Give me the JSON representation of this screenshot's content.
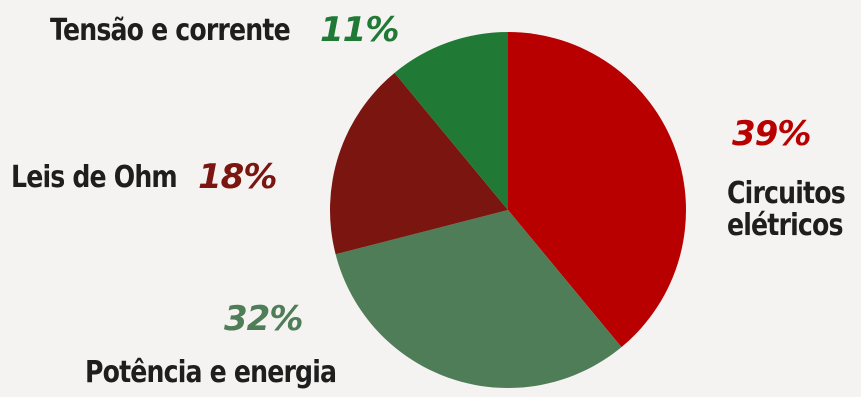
{
  "chart_data": {
    "type": "pie",
    "start_angle_deg": 0,
    "direction": "clockwise",
    "slices": [
      {
        "label": "Circuitos elétricos",
        "label_lines": [
          "Circuitos",
          "elétricos"
        ],
        "value": 39,
        "percent_label": "39%",
        "color": "#b80000"
      },
      {
        "label": "Potência e energia",
        "value": 32,
        "percent_label": "32%",
        "color": "#4e7d58"
      },
      {
        "label": "Leis de Ohm",
        "value": 18,
        "percent_label": "18%",
        "color": "#7a1510"
      },
      {
        "label": "Tensão e corrente",
        "value": 11,
        "percent_label": "11%",
        "color": "#207a36"
      }
    ]
  },
  "colors": {
    "background": "#f4f3f2",
    "label_text": "#1e1e1e"
  }
}
